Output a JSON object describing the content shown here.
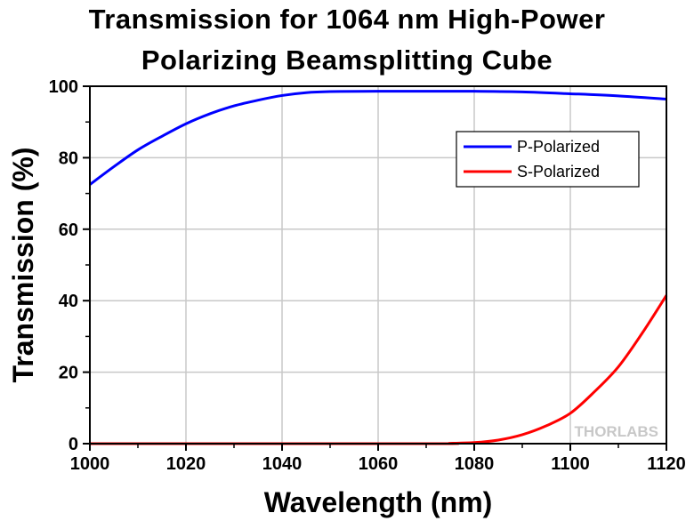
{
  "chart_data": {
    "type": "line",
    "title": "Transmission for 1064 nm High-Power",
    "subtitle": "Polarizing Beamsplitting Cube",
    "xlabel": "Wavelength (nm)",
    "ylabel": "Transmission (%)",
    "xlim": [
      1000,
      1120
    ],
    "ylim": [
      0,
      100
    ],
    "xticks": [
      1000,
      1020,
      1040,
      1060,
      1080,
      1100,
      1120
    ],
    "yticks": [
      0,
      20,
      40,
      60,
      80,
      100
    ],
    "grid": true,
    "legend_position": "top-right",
    "watermark": "THORLABS",
    "series": [
      {
        "name": "P-Polarized",
        "color": "#0000ff",
        "x": [
          1000,
          1005,
          1010,
          1015,
          1020,
          1025,
          1030,
          1035,
          1040,
          1045,
          1050,
          1060,
          1070,
          1080,
          1090,
          1100,
          1110,
          1120
        ],
        "y": [
          72.5,
          77.5,
          82.2,
          86.0,
          89.5,
          92.3,
          94.5,
          96.1,
          97.4,
          98.2,
          98.5,
          98.6,
          98.6,
          98.6,
          98.4,
          97.9,
          97.3,
          96.4
        ]
      },
      {
        "name": "S-Polarized",
        "color": "#ff0000",
        "x": [
          1000,
          1070,
          1075,
          1080,
          1085,
          1090,
          1095,
          1100,
          1105,
          1110,
          1115,
          1120
        ],
        "y": [
          0,
          0,
          0.1,
          0.3,
          1.0,
          2.5,
          5.0,
          8.5,
          14.5,
          21.5,
          31.0,
          41.5
        ]
      }
    ]
  }
}
